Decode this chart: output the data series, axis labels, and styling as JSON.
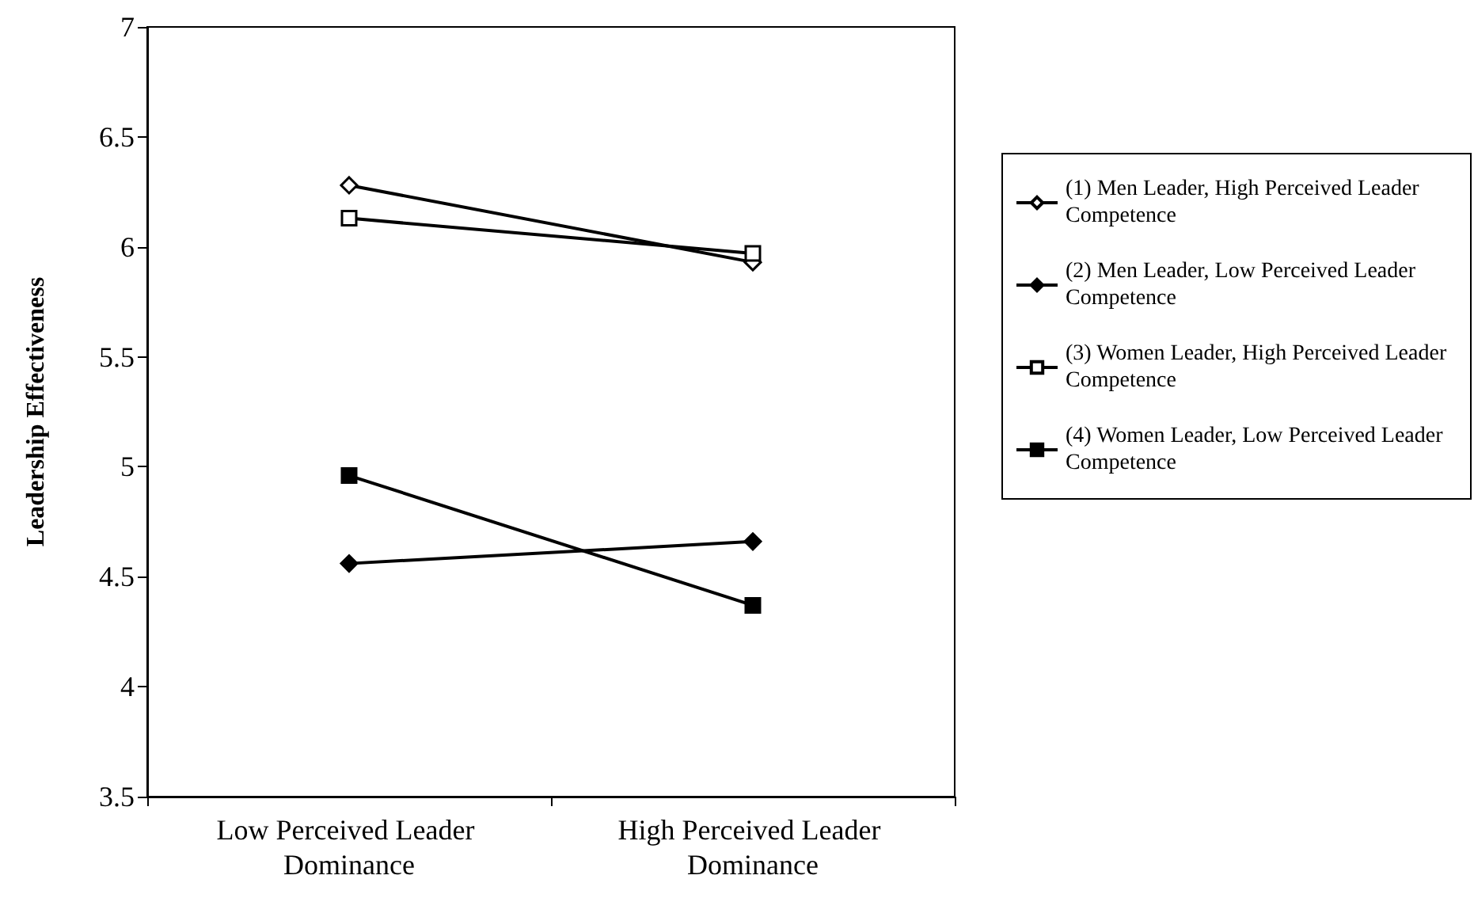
{
  "chart_data": {
    "type": "line",
    "ylabel": "Leadership Effectiveness",
    "categories": [
      "Low Perceived Leader Dominance",
      "High Perceived Leader Dominance"
    ],
    "series": [
      {
        "name": "(1) Men Leader, High Perceived Leader Competence",
        "color": "#000000",
        "marker": "diamond",
        "values": [
          6.28,
          5.93
        ]
      },
      {
        "name": "(2) Men Leader, Low Perceived Leader Competence",
        "color": "#000000",
        "marker": "diamond",
        "values": [
          4.56,
          4.66
        ]
      },
      {
        "name": "(3) Women Leader, High Perceived Leader Competence",
        "color": "#000000",
        "marker": "square",
        "values": [
          6.13,
          5.97
        ]
      },
      {
        "name": "(4) Women Leader, Low Perceived Leader Competence",
        "color": "#000000",
        "marker": "square",
        "values": [
          4.96,
          4.37
        ]
      }
    ],
    "ylim": [
      3.5,
      7
    ],
    "yticks": [
      3.5,
      4,
      4.5,
      5,
      5.5,
      6,
      6.5,
      7
    ],
    "grid": false,
    "legend": "right",
    "line_style": "solid"
  }
}
